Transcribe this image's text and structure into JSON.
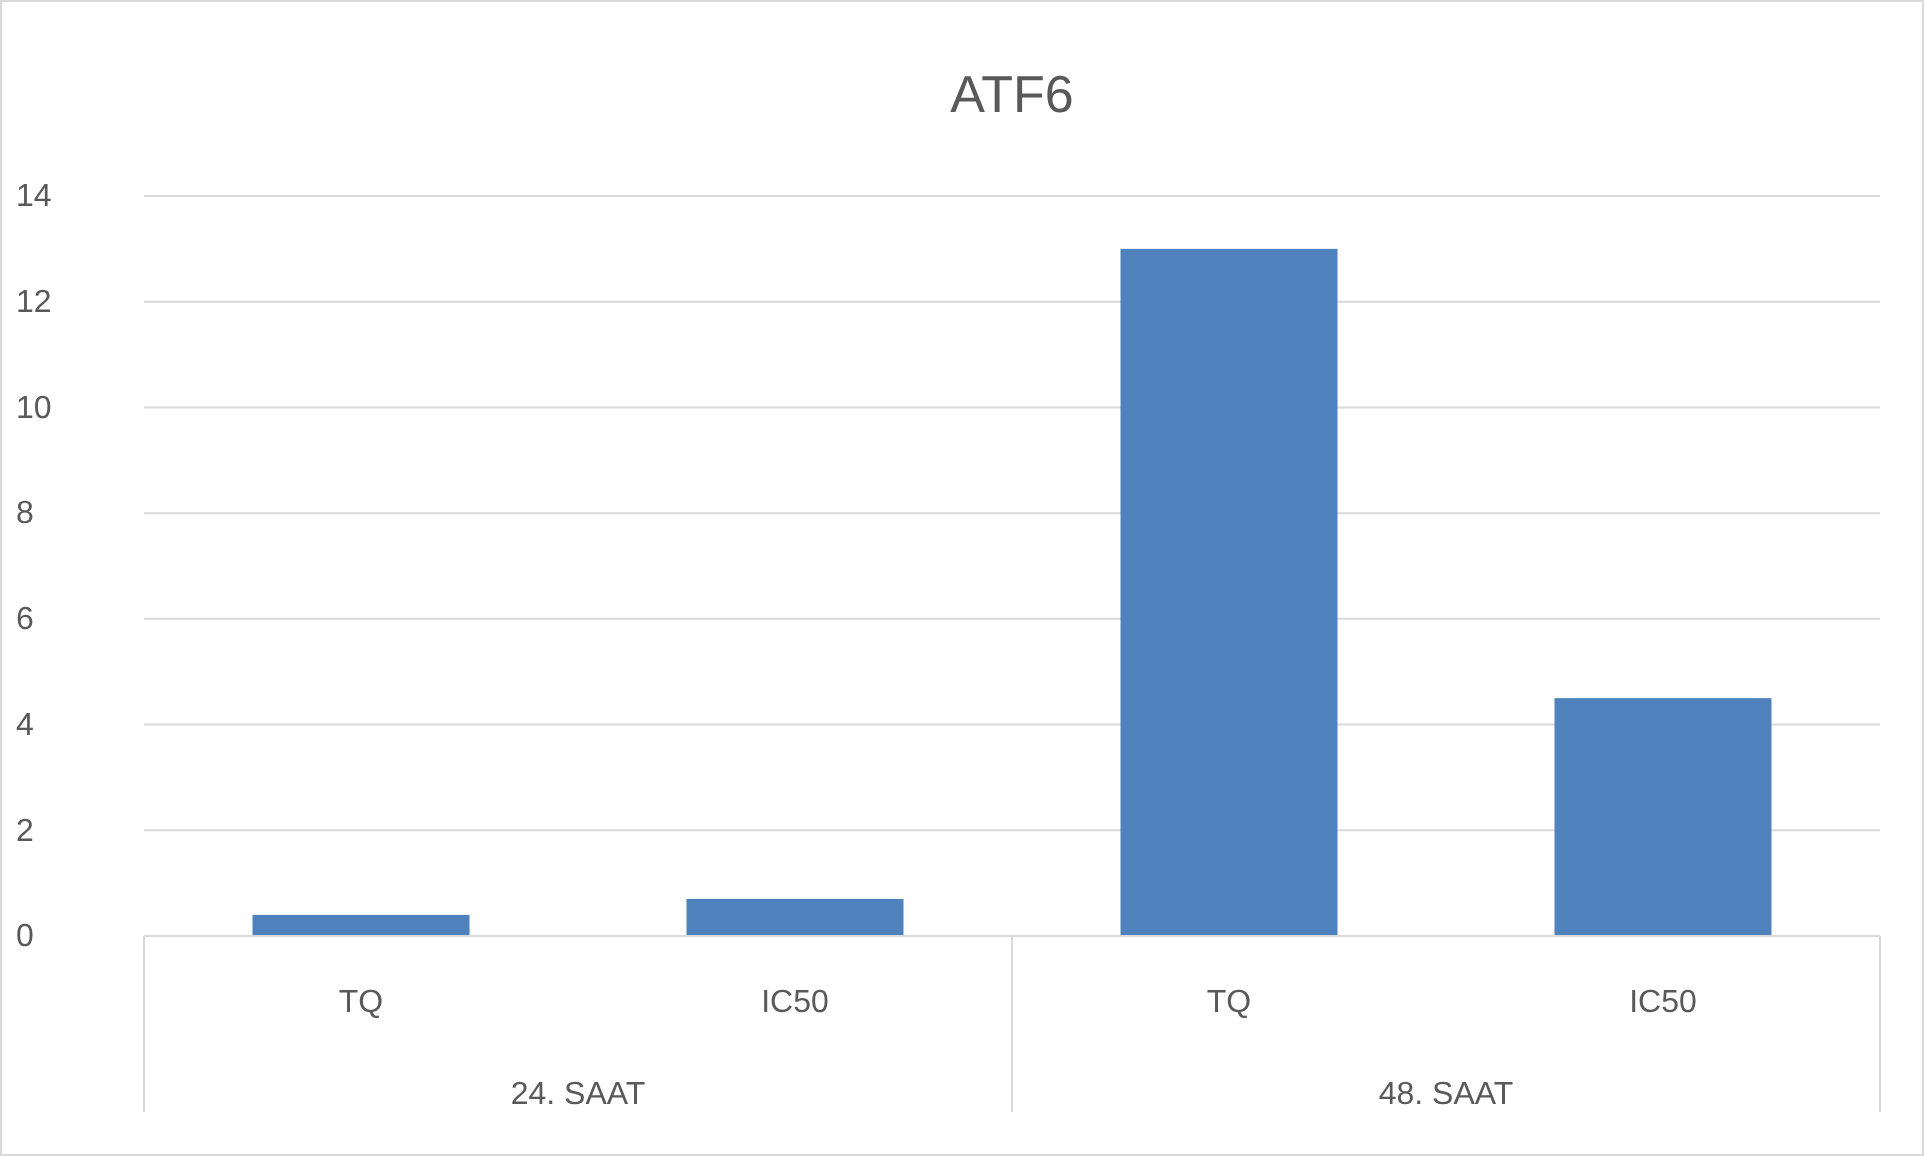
{
  "chart_data": {
    "type": "bar",
    "title": "ATF6",
    "categories": [
      "TQ",
      "IC50",
      "TQ",
      "IC50"
    ],
    "values": [
      0.4,
      0.7,
      13,
      4.5
    ],
    "color": "#4f81bd",
    "ylim": [
      0,
      14
    ],
    "yticks": [
      0,
      2,
      4,
      6,
      8,
      10,
      12,
      14
    ],
    "grid": "y",
    "annotations": [
      "24. SAAT",
      "48. SAAT"
    ]
  }
}
